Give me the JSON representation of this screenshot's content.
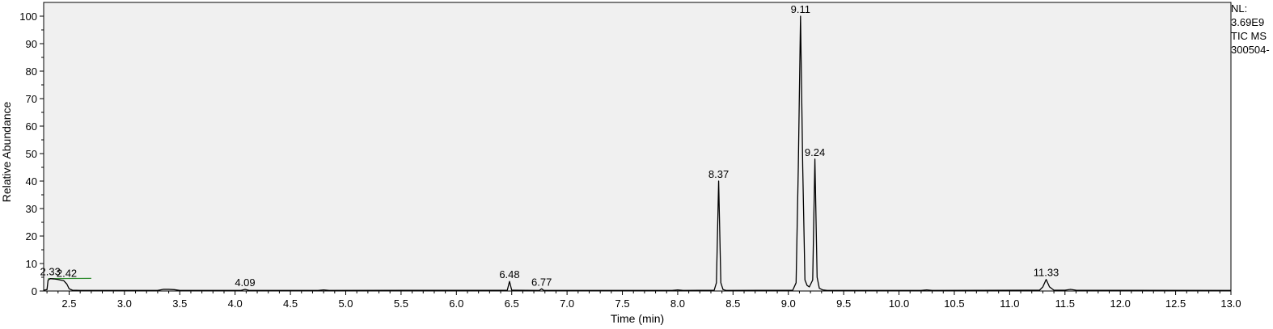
{
  "chart_data": {
    "type": "line",
    "xlabel": "Time (min)",
    "ylabel": "Relative Abundance",
    "xlim": [
      2.27,
      13.0
    ],
    "ylim": [
      0,
      100
    ],
    "x_ticks": [
      2.5,
      3.0,
      3.5,
      4.0,
      4.5,
      5.0,
      5.5,
      6.0,
      6.5,
      7.0,
      7.5,
      8.0,
      8.5,
      9.0,
      9.5,
      10.0,
      10.5,
      11.0,
      11.5,
      12.0,
      12.5,
      13.0
    ],
    "x_tick_labels": [
      "2.5",
      "3.0",
      "3.5",
      "4.0",
      "4.5",
      "5.0",
      "5.5",
      "6.0",
      "6.5",
      "7.0",
      "7.5",
      "8.0",
      "8.5",
      "9.0",
      "9.5",
      "10.0",
      "10.5",
      "11.0",
      "11.5",
      "12.0",
      "12.5",
      "13.0"
    ],
    "y_ticks": [
      0,
      10,
      20,
      30,
      40,
      50,
      60,
      70,
      80,
      90,
      100
    ],
    "y_tick_labels": [
      "0",
      "10",
      "20",
      "30",
      "40",
      "50",
      "60",
      "70",
      "80",
      "90",
      "100"
    ],
    "grid": false,
    "series": [
      {
        "color": "#000000",
        "x": [
          2.27,
          2.3,
          2.31,
          2.33,
          2.36,
          2.4,
          2.42,
          2.45,
          2.48,
          2.5,
          2.53,
          2.6,
          3.3,
          3.35,
          3.4,
          3.45,
          3.5,
          4.05,
          4.09,
          4.13,
          4.75,
          4.8,
          4.85,
          6.46,
          6.48,
          6.5,
          6.75,
          6.77,
          6.79,
          7.95,
          8.0,
          8.05,
          8.33,
          8.35,
          8.37,
          8.39,
          8.41,
          8.44,
          9.04,
          9.07,
          9.09,
          9.11,
          9.13,
          9.15,
          9.17,
          9.19,
          9.22,
          9.24,
          9.26,
          9.28,
          9.31,
          9.35,
          10.2,
          10.25,
          10.3,
          11.27,
          11.3,
          11.33,
          11.36,
          11.4,
          11.5,
          11.55,
          11.6,
          13.0
        ],
        "y": [
          0.3,
          0.5,
          4.0,
          4.5,
          4.4,
          4.2,
          4.0,
          3.8,
          2.5,
          0.8,
          0.3,
          0.2,
          0.2,
          0.6,
          0.6,
          0.5,
          0.2,
          0.2,
          0.6,
          0.2,
          0.2,
          0.4,
          0.2,
          0.3,
          3.5,
          0.3,
          0.2,
          0.8,
          0.2,
          0.2,
          0.4,
          0.2,
          0.3,
          3.0,
          40.0,
          3.0,
          0.5,
          0.2,
          0.3,
          3.0,
          45.0,
          100.0,
          45.0,
          4.0,
          2.0,
          1.5,
          4.0,
          48.0,
          5.0,
          1.0,
          0.4,
          0.2,
          0.2,
          0.4,
          0.2,
          0.3,
          1.5,
          4.2,
          1.5,
          0.3,
          0.3,
          0.6,
          0.3,
          0.2
        ]
      }
    ],
    "baseline": {
      "x": [
        2.31,
        2.7
      ],
      "y": [
        4.5,
        4.6
      ],
      "color": "#2e8b2e"
    },
    "peak_labels": [
      {
        "text": "2.33",
        "x": 2.33,
        "y": 4.5
      },
      {
        "text": "2.42",
        "x": 2.42,
        "y": 4.0
      },
      {
        "text": "4.09",
        "x": 4.09,
        "y": 0.6
      },
      {
        "text": "6.48",
        "x": 6.48,
        "y": 3.5
      },
      {
        "text": "6.77",
        "x": 6.77,
        "y": 0.8
      },
      {
        "text": "8.37",
        "x": 8.37,
        "y": 40.0
      },
      {
        "text": "9.11",
        "x": 9.11,
        "y": 100.0
      },
      {
        "text": "9.24",
        "x": 9.24,
        "y": 48.0
      },
      {
        "text": "11.33",
        "x": 11.33,
        "y": 4.2
      }
    ],
    "annotations": [
      "NL:",
      "3.69E9",
      "TIC  MS",
      "300504-"
    ]
  }
}
